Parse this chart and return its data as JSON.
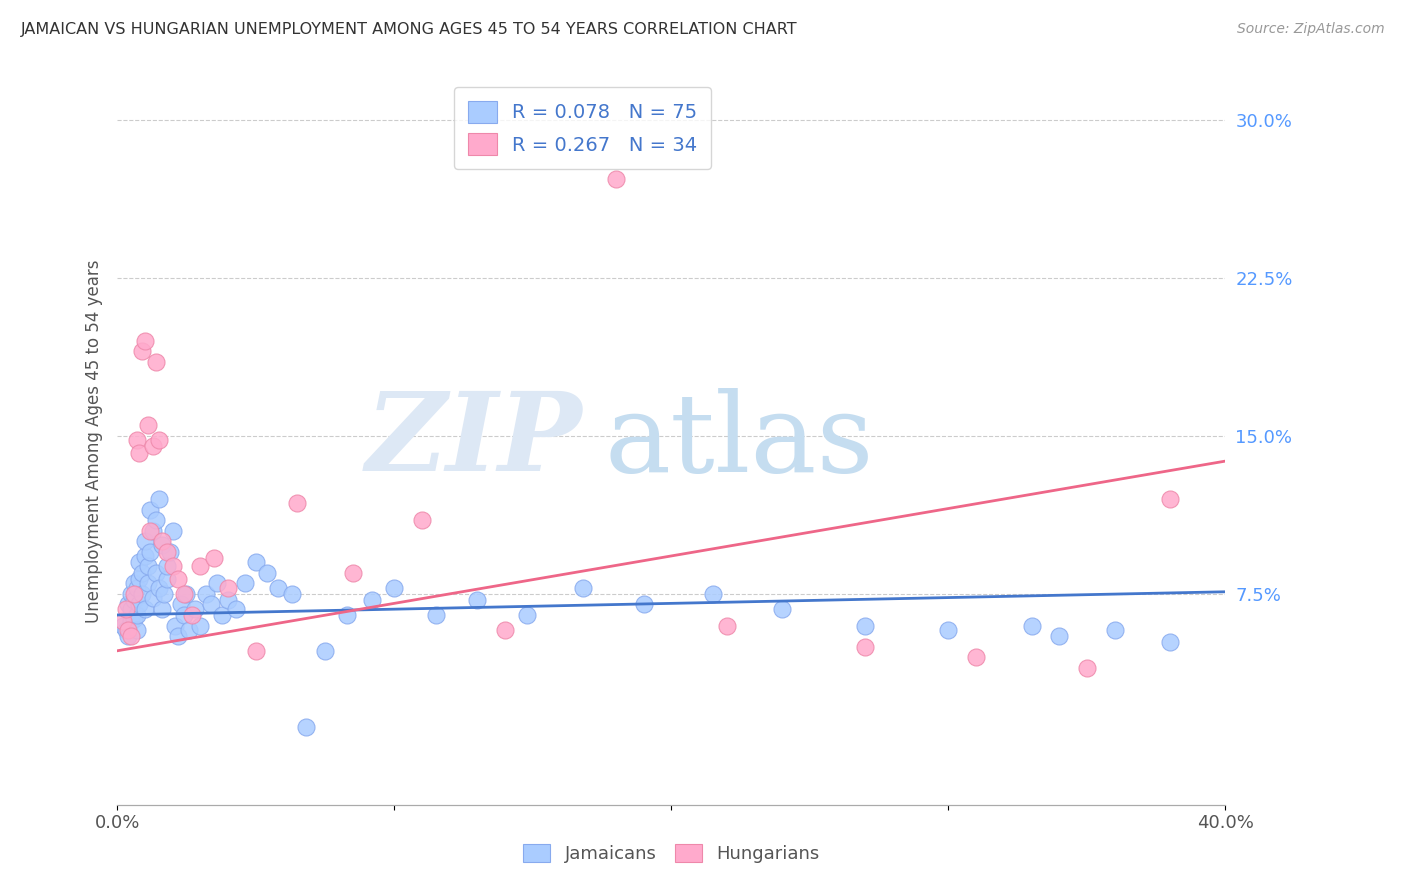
{
  "title": "JAMAICAN VS HUNGARIAN UNEMPLOYMENT AMONG AGES 45 TO 54 YEARS CORRELATION CHART",
  "source": "Source: ZipAtlas.com",
  "ylabel": "Unemployment Among Ages 45 to 54 years",
  "xlim": [
    0.0,
    0.4
  ],
  "ylim": [
    -0.025,
    0.32
  ],
  "yticks_right": [
    0.075,
    0.15,
    0.225,
    0.3
  ],
  "yticklabels_right": [
    "7.5%",
    "15.0%",
    "22.5%",
    "30.0%"
  ],
  "grid_color": "#cccccc",
  "background_color": "#ffffff",
  "jamaicans_color": "#aaccff",
  "jamaicans_edge": "#88aaee",
  "hungarians_color": "#ffaacc",
  "hungarians_edge": "#ee88aa",
  "trend_blue": "#4477cc",
  "trend_pink": "#ee6688",
  "jamaicans_R": 0.078,
  "jamaicans_N": 75,
  "hungarians_R": 0.267,
  "hungarians_N": 34,
  "blue_trend_x": [
    0.0,
    0.4
  ],
  "blue_trend_y": [
    0.065,
    0.076
  ],
  "pink_trend_x": [
    0.0,
    0.4
  ],
  "pink_trend_y": [
    0.048,
    0.138
  ],
  "jamaicans_x": [
    0.002,
    0.003,
    0.004,
    0.004,
    0.005,
    0.005,
    0.005,
    0.006,
    0.006,
    0.006,
    0.007,
    0.007,
    0.007,
    0.008,
    0.008,
    0.008,
    0.009,
    0.009,
    0.01,
    0.01,
    0.01,
    0.011,
    0.011,
    0.012,
    0.012,
    0.013,
    0.013,
    0.014,
    0.014,
    0.015,
    0.015,
    0.016,
    0.016,
    0.017,
    0.018,
    0.018,
    0.019,
    0.02,
    0.021,
    0.022,
    0.023,
    0.024,
    0.025,
    0.026,
    0.028,
    0.03,
    0.032,
    0.034,
    0.036,
    0.038,
    0.04,
    0.043,
    0.046,
    0.05,
    0.054,
    0.058,
    0.063,
    0.068,
    0.075,
    0.083,
    0.092,
    0.1,
    0.115,
    0.13,
    0.148,
    0.168,
    0.19,
    0.215,
    0.24,
    0.27,
    0.3,
    0.33,
    0.34,
    0.36,
    0.38
  ],
  "jamaicans_y": [
    0.06,
    0.058,
    0.055,
    0.07,
    0.062,
    0.068,
    0.075,
    0.063,
    0.072,
    0.08,
    0.058,
    0.065,
    0.078,
    0.07,
    0.082,
    0.09,
    0.075,
    0.085,
    0.093,
    0.068,
    0.1,
    0.08,
    0.088,
    0.095,
    0.115,
    0.105,
    0.073,
    0.11,
    0.085,
    0.078,
    0.12,
    0.098,
    0.068,
    0.075,
    0.082,
    0.088,
    0.095,
    0.105,
    0.06,
    0.055,
    0.07,
    0.065,
    0.075,
    0.058,
    0.068,
    0.06,
    0.075,
    0.07,
    0.08,
    0.065,
    0.072,
    0.068,
    0.08,
    0.09,
    0.085,
    0.078,
    0.075,
    0.012,
    0.048,
    0.065,
    0.072,
    0.078,
    0.065,
    0.072,
    0.065,
    0.078,
    0.07,
    0.075,
    0.068,
    0.06,
    0.058,
    0.06,
    0.055,
    0.058,
    0.052
  ],
  "hungarians_x": [
    0.002,
    0.003,
    0.004,
    0.005,
    0.006,
    0.007,
    0.008,
    0.009,
    0.01,
    0.011,
    0.012,
    0.013,
    0.014,
    0.015,
    0.016,
    0.018,
    0.02,
    0.022,
    0.024,
    0.027,
    0.03,
    0.035,
    0.04,
    0.05,
    0.065,
    0.085,
    0.11,
    0.14,
    0.18,
    0.22,
    0.27,
    0.31,
    0.35,
    0.38
  ],
  "hungarians_y": [
    0.062,
    0.068,
    0.058,
    0.055,
    0.075,
    0.148,
    0.142,
    0.19,
    0.195,
    0.155,
    0.105,
    0.145,
    0.185,
    0.148,
    0.1,
    0.095,
    0.088,
    0.082,
    0.075,
    0.065,
    0.088,
    0.092,
    0.078,
    0.048,
    0.118,
    0.085,
    0.11,
    0.058,
    0.272,
    0.06,
    0.05,
    0.045,
    0.04,
    0.12
  ]
}
